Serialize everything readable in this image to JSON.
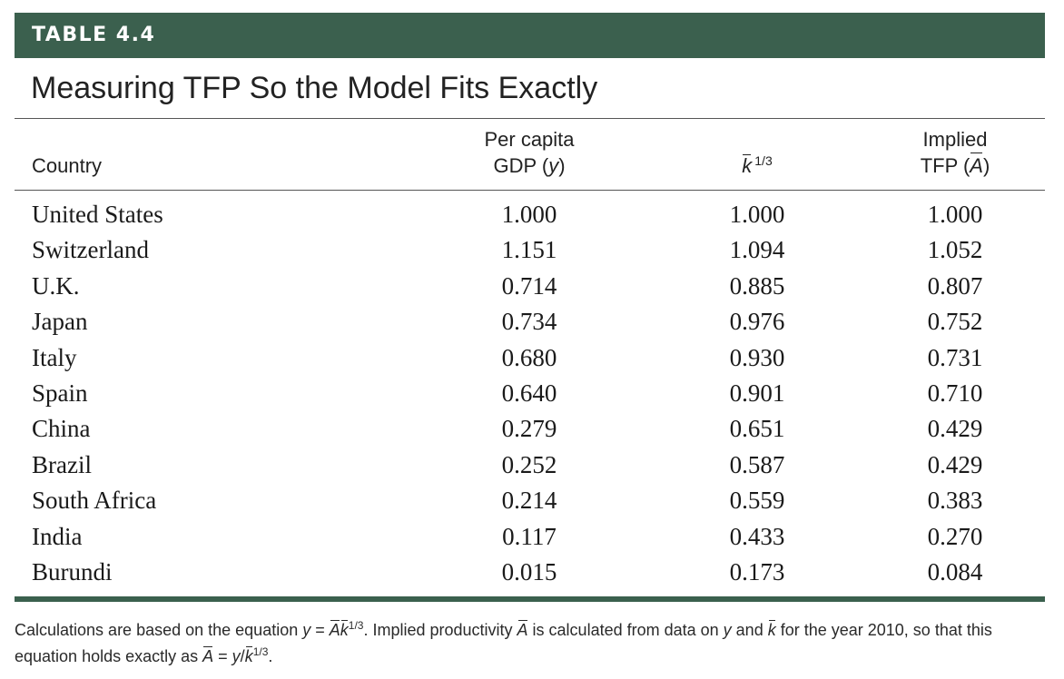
{
  "label": "TABLE 4.4",
  "title": "Measuring TFP So the Model Fits Exactly",
  "columns": {
    "country": "Country",
    "gdp_line1": "Per capita",
    "gdp_line2_prefix": "GDP (",
    "gdp_line2_var": "y",
    "gdp_line2_suffix": ")",
    "k_var": "k",
    "k_exponent": "1/3",
    "tfp_line1": "Implied",
    "tfp_line2_prefix": "TFP (",
    "tfp_line2_var": "A",
    "tfp_line2_suffix": ")"
  },
  "rows": [
    {
      "country": "United States",
      "gdp": "1.000",
      "k": "1.000",
      "tfp": "1.000"
    },
    {
      "country": "Switzerland",
      "gdp": "1.151",
      "k": "1.094",
      "tfp": "1.052"
    },
    {
      "country": "U.K.",
      "gdp": "0.714",
      "k": "0.885",
      "tfp": "0.807"
    },
    {
      "country": "Japan",
      "gdp": "0.734",
      "k": "0.976",
      "tfp": "0.752"
    },
    {
      "country": "Italy",
      "gdp": "0.680",
      "k": "0.930",
      "tfp": "0.731"
    },
    {
      "country": "Spain",
      "gdp": "0.640",
      "k": "0.901",
      "tfp": "0.710"
    },
    {
      "country": "China",
      "gdp": "0.279",
      "k": "0.651",
      "tfp": "0.429"
    },
    {
      "country": "Brazil",
      "gdp": "0.252",
      "k": "0.587",
      "tfp": "0.429"
    },
    {
      "country": "South Africa",
      "gdp": "0.214",
      "k": "0.559",
      "tfp": "0.383"
    },
    {
      "country": "India",
      "gdp": "0.117",
      "k": "0.433",
      "tfp": "0.270"
    },
    {
      "country": "Burundi",
      "gdp": "0.015",
      "k": "0.173",
      "tfp": "0.084"
    }
  ],
  "footnote": {
    "part1": "Calculations are based on the equation ",
    "eq1_y": "y",
    "eq1_eq": " = ",
    "eq1_A": "A",
    "eq1_k": "k",
    "eq1_exp": "1/3",
    "part2": ". Implied productivity ",
    "A2": "A",
    "part3": " is calculated from data on ",
    "y3": "y",
    "part4": " and ",
    "k4": "k",
    "part5": " for the year 2010, so that this equation holds exactly as ",
    "eq2_A": "A",
    "eq2_eq": " = ",
    "eq2_y": "y",
    "eq2_slash": "/",
    "eq2_k": "k",
    "eq2_exp": "1/3",
    "part6": "."
  },
  "colors": {
    "accent_green": "#3b604e"
  }
}
